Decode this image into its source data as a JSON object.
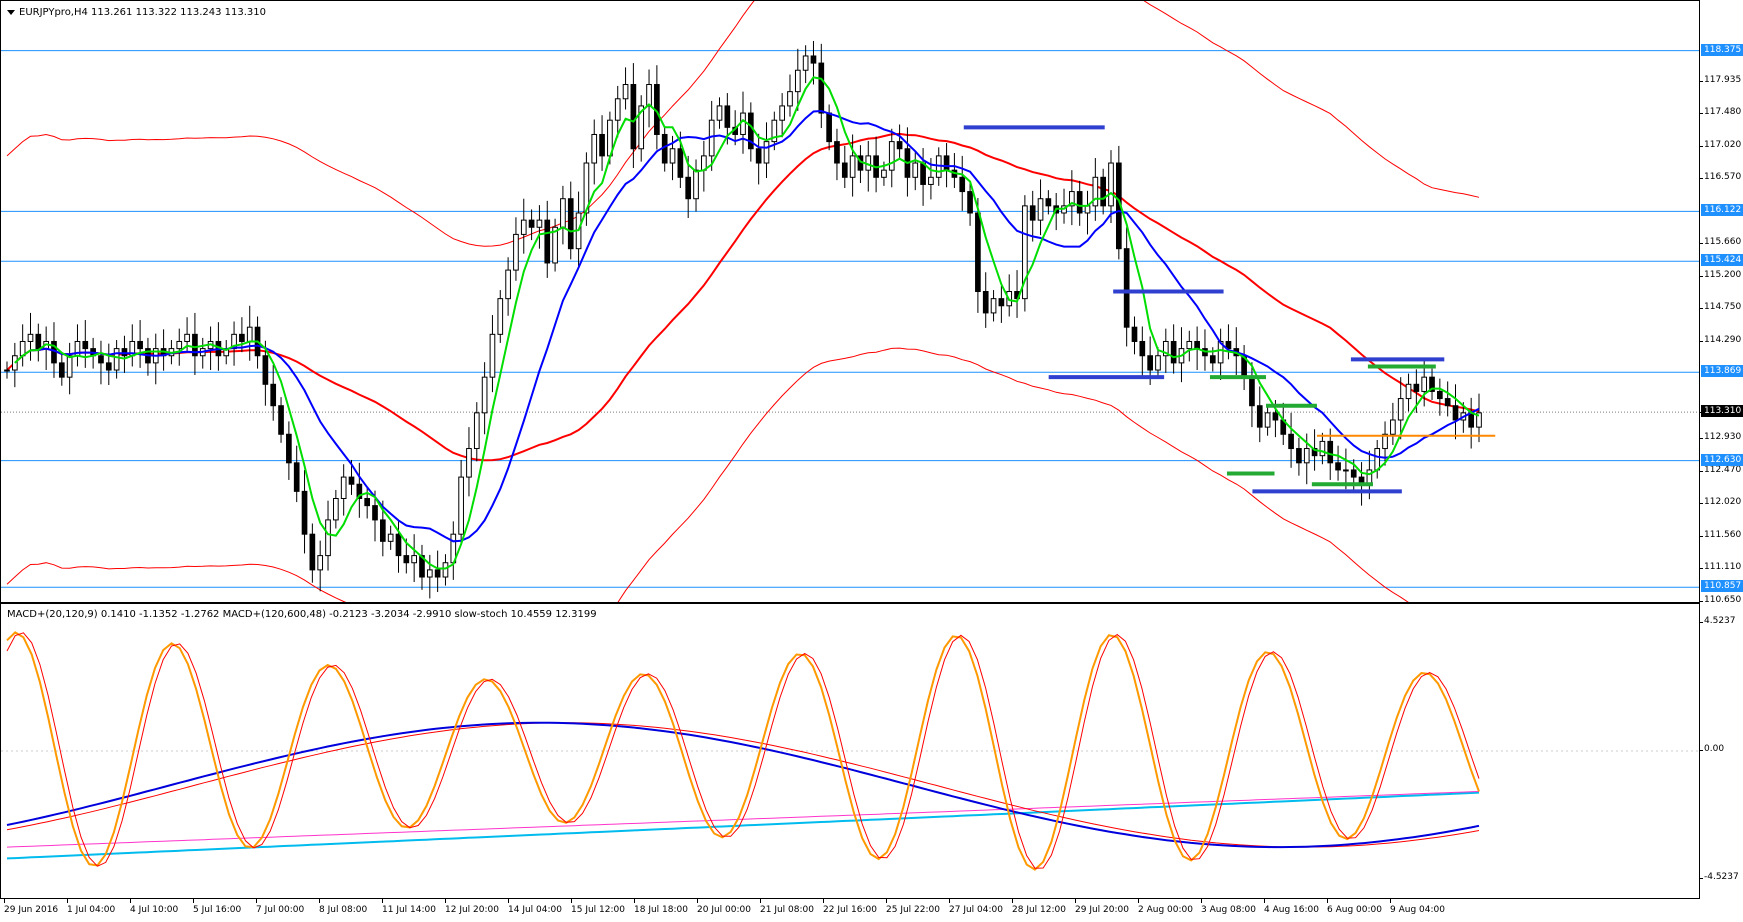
{
  "chart_data": [
    {
      "type": "candlestick",
      "title": "EURJPYpro,H4 113.261 113.322 113.243 113.310",
      "symbol": "EURJPYpro",
      "timeframe": "H4",
      "ohlc_last": {
        "open": 113.261,
        "high": 113.322,
        "low": 113.243,
        "close": 113.31
      },
      "ylim": [
        110.65,
        119.07
      ],
      "y_ticks": [
        "117.935",
        "117.480",
        "117.020",
        "116.570",
        "115.660",
        "115.200",
        "114.750",
        "114.290",
        "113.3",
        "112.930",
        "112.470",
        "112.020",
        "111.560",
        "111.110",
        "110.650"
      ],
      "x_ticks": [
        "29 Jun 2016",
        "1 Jul 04:00",
        "4 Jul 10:00",
        "5 Jul 16:00",
        "7 Jul 00:00",
        "8 Jul 08:00",
        "11 Jul 14:00",
        "12 Jul 20:00",
        "14 Jul 04:00",
        "15 Jul 12:00",
        "18 Jul 18:00",
        "20 Jul 00:00",
        "21 Jul 08:00",
        "22 Jul 16:00",
        "25 Jul 22:00",
        "27 Jul 04:00",
        "28 Jul 12:00",
        "29 Jul 20:00",
        "2 Aug 00:00",
        "3 Aug 08:00",
        "4 Aug 16:00",
        "6 Aug 00:00",
        "9 Aug 04:00"
      ],
      "horizontal_levels": [
        {
          "label": "118.375",
          "value": 118.375,
          "color": "#1e90ff"
        },
        {
          "label": "116.122",
          "value": 116.122,
          "color": "#1e90ff"
        },
        {
          "label": "115.424",
          "value": 115.424,
          "color": "#1e90ff"
        },
        {
          "label": "113.869",
          "value": 113.869,
          "color": "#1e90ff"
        },
        {
          "label": "113.310",
          "value": 113.31,
          "color": "#000000"
        },
        {
          "label": "112.630",
          "value": 112.63,
          "color": "#1e90ff"
        },
        {
          "label": "110.857",
          "value": 110.857,
          "color": "#1e90ff"
        }
      ],
      "close_path": [
        113.9,
        114.1,
        114.3,
        114.4,
        114.2,
        114.3,
        114.0,
        113.8,
        114.1,
        114.3,
        114.2,
        114.1,
        114.0,
        113.9,
        114.2,
        114.1,
        114.3,
        114.2,
        114.0,
        114.2,
        114.1,
        114.2,
        114.3,
        114.4,
        114.1,
        114.2,
        114.3,
        114.1,
        114.2,
        114.4,
        114.3,
        114.5,
        114.1,
        113.7,
        113.4,
        113.0,
        112.6,
        112.2,
        111.6,
        111.1,
        111.3,
        111.8,
        112.1,
        112.4,
        112.3,
        112.1,
        112.0,
        111.8,
        111.5,
        111.6,
        111.3,
        111.2,
        111.3,
        111.0,
        111.1,
        111.0,
        111.2,
        111.6,
        112.4,
        112.8,
        113.3,
        113.8,
        114.4,
        114.9,
        115.3,
        115.8,
        116.0,
        115.9,
        116.0,
        115.4,
        115.9,
        116.3,
        115.6,
        116.1,
        116.8,
        117.2,
        116.9,
        117.4,
        117.7,
        117.9,
        117.0,
        117.6,
        117.9,
        117.2,
        116.8,
        117.0,
        116.6,
        116.3,
        116.7,
        116.9,
        117.4,
        117.6,
        117.3,
        117.2,
        117.5,
        117.0,
        116.8,
        117.1,
        117.4,
        117.6,
        117.8,
        118.1,
        118.3,
        118.2,
        117.5,
        117.1,
        116.8,
        116.6,
        116.9,
        116.7,
        116.9,
        116.6,
        116.7,
        117.1,
        117.0,
        116.6,
        116.8,
        116.5,
        116.6,
        116.9,
        116.7,
        116.6,
        116.4,
        116.1,
        115.0,
        114.7,
        114.9,
        114.8,
        115.0,
        114.9,
        116.2,
        116.0,
        116.3,
        116.2,
        116.1,
        116.2,
        116.4,
        116.1,
        116.2,
        116.6,
        116.2,
        116.8,
        115.6,
        114.5,
        114.3,
        114.1,
        113.9,
        114.1,
        114.3,
        114.0,
        114.2,
        114.3,
        114.2,
        114.1,
        114.0,
        114.3,
        114.2,
        114.1,
        113.8,
        113.4,
        113.1,
        113.3,
        113.2,
        113.0,
        112.8,
        112.6,
        112.8,
        112.7,
        112.9,
        112.6,
        112.5,
        112.5,
        112.4,
        112.3,
        112.5,
        112.8,
        113.0,
        113.2,
        113.5,
        113.7,
        113.6,
        113.8,
        113.6,
        113.5,
        113.4,
        113.2,
        113.3,
        113.1,
        113.3
      ],
      "ma_green_color": "#00dd00",
      "ma_blue_color": "#0000ff",
      "envelope_color": "#ff0000",
      "trend_segments": [
        {
          "color": "#2f3fcf",
          "y": 117.3,
          "x0": 0.567,
          "x1": 0.65
        },
        {
          "color": "#2f3fcf",
          "y": 115.0,
          "x0": 0.655,
          "x1": 0.72
        },
        {
          "color": "#2f3fcf",
          "y": 113.8,
          "x0": 0.617,
          "x1": 0.685
        },
        {
          "color": "#2f3fcf",
          "y": 114.05,
          "x0": 0.795,
          "x1": 0.85
        },
        {
          "color": "#2f3fcf",
          "y": 112.2,
          "x0": 0.737,
          "x1": 0.825
        },
        {
          "color": "#22aa33",
          "y": 113.8,
          "x0": 0.712,
          "x1": 0.745
        },
        {
          "color": "#22aa33",
          "y": 113.4,
          "x0": 0.745,
          "x1": 0.775
        },
        {
          "color": "#22aa33",
          "y": 112.45,
          "x0": 0.722,
          "x1": 0.75
        },
        {
          "color": "#22aa33",
          "y": 112.3,
          "x0": 0.772,
          "x1": 0.808
        },
        {
          "color": "#22aa33",
          "y": 113.95,
          "x0": 0.805,
          "x1": 0.845
        },
        {
          "color": "#ff8800",
          "y": 112.98,
          "x0": 0.775,
          "x1": 0.88
        }
      ]
    },
    {
      "type": "line",
      "title": "MACD+(20,120,9) 0.1410 -1.1352 -1.2762  MACD+(120,600,48) -0.2123 -3.2034 -2.9910  slow-stoch 10.4559 12.3199",
      "ylim": [
        -5.2,
        5.2
      ],
      "y_ticks": [
        "4.5237",
        "0.00",
        "-4.5237"
      ],
      "series": [
        {
          "name": "slow-stoch",
          "color": "#ff9900"
        },
        {
          "color": "#ff0000"
        },
        {
          "color": "#0000dd"
        },
        {
          "color": "#00bbee"
        },
        {
          "color": "#ff33cc"
        }
      ]
    }
  ]
}
